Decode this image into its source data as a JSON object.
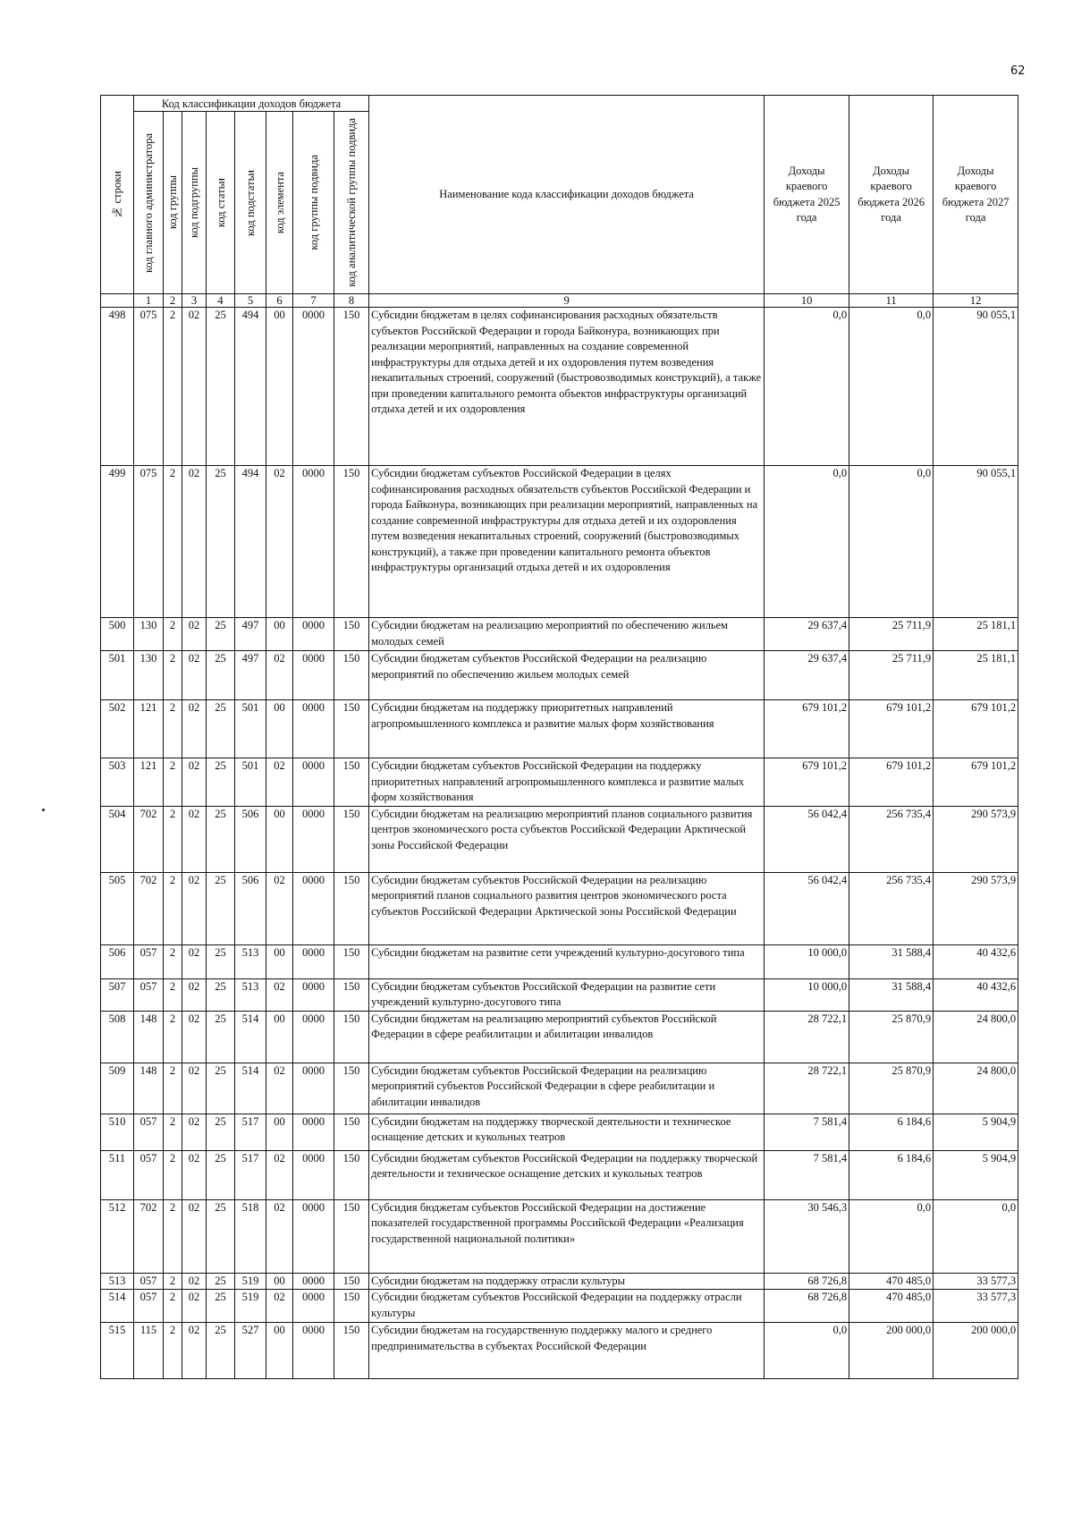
{
  "page_number": "62",
  "header": {
    "row_no": "№ строки",
    "group_title": "Код классификации доходов бюджета",
    "codes": [
      "код главного администратора",
      "код группы",
      "код подгруппы",
      "код статьи",
      "код подстатьи",
      "код элемента",
      "код группы подвида",
      "код аналитической группы подвида"
    ],
    "name": "Наименование кода классификации доходов бюджета",
    "y2025": "Доходы краевого бюджета 2025 года",
    "y2026": "Доходы краевого бюджета 2026 года",
    "y2027": "Доходы краевого бюджета 2027 года",
    "col_numbers": [
      "",
      "1",
      "2",
      "3",
      "4",
      "5",
      "6",
      "7",
      "8",
      "9",
      "10",
      "11",
      "12"
    ]
  },
  "rows": [
    {
      "n": "498",
      "c": [
        "075",
        "2",
        "02",
        "25",
        "494",
        "00",
        "0000",
        "150"
      ],
      "name": "Субсидии бюджетам в целях софинансирования расходных обязательств субъектов Российской Федерации и города Байконура, возникающих при реализации мероприятий, направленных на создание современной инфраструктуры для отдыха детей и их оздоровления путем возведения некапитальных строений, сооружений (быстровозводимых конструкций), а также при проведении капитального ремонта объектов инфраструктуры организаций отдыха детей и их оздоровления",
      "v": [
        "0,0",
        "0,0",
        "90 055,1"
      ]
    },
    {
      "n": "499",
      "c": [
        "075",
        "2",
        "02",
        "25",
        "494",
        "02",
        "0000",
        "150"
      ],
      "name": "Субсидии бюджетам субъектов Российской Федерации в целях софинансирования расходных обязательств субъектов Российской Федерации и города Байконура, возникающих при реализации мероприятий, направленных на создание современной инфраструктуры для отдыха детей и их оздоровления путем возведения некапитальных строений, сооружений (быстровозводимых конструкций), а также при проведении капитального ремонта объектов инфраструктуры организаций отдыха детей и их оздоровления",
      "v": [
        "0,0",
        "0,0",
        "90 055,1"
      ]
    },
    {
      "n": "500",
      "c": [
        "130",
        "2",
        "02",
        "25",
        "497",
        "00",
        "0000",
        "150"
      ],
      "name": "Субсидии бюджетам на реализацию мероприятий по обеспечению жильем молодых семей",
      "v": [
        "29 637,4",
        "25 711,9",
        "25 181,1"
      ]
    },
    {
      "n": "501",
      "c": [
        "130",
        "2",
        "02",
        "25",
        "497",
        "02",
        "0000",
        "150"
      ],
      "name": "Субсидии бюджетам субъектов Российской Федерации на реализацию мероприятий по обеспечению жильем молодых семей",
      "v": [
        "29 637,4",
        "25 711,9",
        "25 181,1"
      ]
    },
    {
      "n": "502",
      "c": [
        "121",
        "2",
        "02",
        "25",
        "501",
        "00",
        "0000",
        "150"
      ],
      "name": "Субсидии бюджетам на поддержку приоритетных направлений агропромышленного комплекса и развитие малых форм хозяйствования",
      "v": [
        "679 101,2",
        "679 101,2",
        "679 101,2"
      ]
    },
    {
      "n": "503",
      "c": [
        "121",
        "2",
        "02",
        "25",
        "501",
        "02",
        "0000",
        "150"
      ],
      "name": "Субсидии бюджетам субъектов Российской Федерации на поддержку приоритетных направлений агропромышленного комплекса и развитие малых форм хозяйствования",
      "v": [
        "679 101,2",
        "679 101,2",
        "679 101,2"
      ]
    },
    {
      "n": "504",
      "c": [
        "702",
        "2",
        "02",
        "25",
        "506",
        "00",
        "0000",
        "150"
      ],
      "name": "Субсидии бюджетам на реализацию мероприятий планов социального развития центров экономического роста субъектов Российской Федерации Арктической зоны Российской Федерации",
      "v": [
        "56 042,4",
        "256 735,4",
        "290 573,9"
      ]
    },
    {
      "n": "505",
      "c": [
        "702",
        "2",
        "02",
        "25",
        "506",
        "02",
        "0000",
        "150"
      ],
      "name": "Субсидии бюджетам субъектов Российской Федерации на реализацию мероприятий планов социального развития центров экономического роста субъектов Российской Федерации Арктической зоны Российской Федерации",
      "v": [
        "56 042,4",
        "256 735,4",
        "290 573,9"
      ]
    },
    {
      "n": "506",
      "c": [
        "057",
        "2",
        "02",
        "25",
        "513",
        "00",
        "0000",
        "150"
      ],
      "name": "Субсидии бюджетам на развитие сети учреждений культурно-досугового типа",
      "v": [
        "10 000,0",
        "31 588,4",
        "40 432,6"
      ]
    },
    {
      "n": "507",
      "c": [
        "057",
        "2",
        "02",
        "25",
        "513",
        "02",
        "0000",
        "150"
      ],
      "name": "Субсидии бюджетам субъектов Российской Федерации на развитие сети учреждений культурно-досугового типа",
      "v": [
        "10 000,0",
        "31 588,4",
        "40 432,6"
      ]
    },
    {
      "n": "508",
      "c": [
        "148",
        "2",
        "02",
        "25",
        "514",
        "00",
        "0000",
        "150"
      ],
      "name": "Субсидии бюджетам на реализацию мероприятий субъектов Российской Федерации в сфере реабилитации и абилитации инвалидов",
      "v": [
        "28 722,1",
        "25 870,9",
        "24 800,0"
      ]
    },
    {
      "n": "509",
      "c": [
        "148",
        "2",
        "02",
        "25",
        "514",
        "02",
        "0000",
        "150"
      ],
      "name": "Субсидии бюджетам субъектов Российской Федерации на реализацию мероприятий субъектов Российской Федерации в сфере реабилитации и абилитации инвалидов",
      "v": [
        "28 722,1",
        "25 870,9",
        "24 800,0"
      ]
    },
    {
      "n": "510",
      "c": [
        "057",
        "2",
        "02",
        "25",
        "517",
        "00",
        "0000",
        "150"
      ],
      "name": "Субсидии бюджетам на поддержку творческой деятельности и техническое оснащение детских и кукольных театров",
      "v": [
        "7 581,4",
        "6 184,6",
        "5 904,9"
      ]
    },
    {
      "n": "511",
      "c": [
        "057",
        "2",
        "02",
        "25",
        "517",
        "02",
        "0000",
        "150"
      ],
      "name": "Субсидии бюджетам субъектов Российской Федерации на поддержку творческой деятельности и техническое оснащение детских и кукольных театров",
      "v": [
        "7 581,4",
        "6 184,6",
        "5 904,9"
      ]
    },
    {
      "n": "512",
      "c": [
        "702",
        "2",
        "02",
        "25",
        "518",
        "02",
        "0000",
        "150"
      ],
      "name": "Субсидия бюджетам субъектов Российской Федерации на достижение показателей государственной программы Российской Федерации «Реализация государственной национальной политики»",
      "v": [
        "30 546,3",
        "0,0",
        "0,0"
      ]
    },
    {
      "n": "513",
      "c": [
        "057",
        "2",
        "02",
        "25",
        "519",
        "00",
        "0000",
        "150"
      ],
      "name": "Субсидии бюджетам на поддержку отрасли культуры",
      "v": [
        "68 726,8",
        "470 485,0",
        "33 577,3"
      ]
    },
    {
      "n": "514",
      "c": [
        "057",
        "2",
        "02",
        "25",
        "519",
        "02",
        "0000",
        "150"
      ],
      "name": "Субсидии бюджетам субъектов Российской Федерации на поддержку отрасли культуры",
      "v": [
        "68 726,8",
        "470 485,0",
        "33 577,3"
      ]
    },
    {
      "n": "515",
      "c": [
        "115",
        "2",
        "02",
        "25",
        "527",
        "00",
        "0000",
        "150"
      ],
      "name": "Субсидии бюджетам на государственную поддержку малого и среднего предпринимательства в субъектах Российской Федерации",
      "v": [
        "0,0",
        "200 000,0",
        "200 000,0"
      ]
    }
  ]
}
